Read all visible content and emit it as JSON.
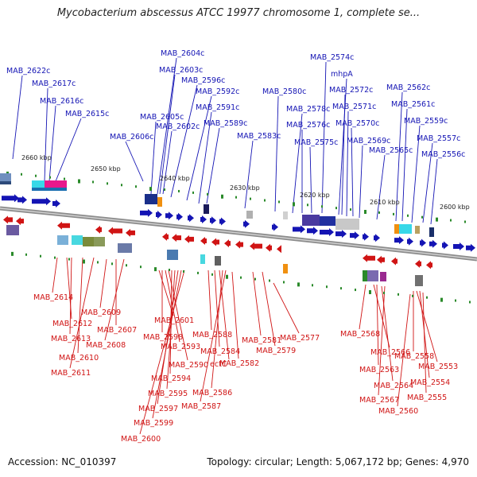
{
  "title": "Mycobacterium abscessus ATCC 19977 chromosome 1, complete se...",
  "footer": {
    "accession": "Accession: NC_010397",
    "summary": "Topology: circular; Length: 5,067,172 bp; Genes: 4,970"
  },
  "scale_labels": [
    "2660 kbp",
    "2650 kbp",
    "2640 kbp",
    "2630 kbp",
    "2620 kbp",
    "2610 kbp",
    "2600 kbp"
  ],
  "top_genes": [
    "MAB_2622c",
    "MAB_2617c",
    "MAB_2616c",
    "MAB_2615c",
    "MAB_2606c",
    "MAB_2605c",
    "MAB_2604c",
    "MAB_2603c",
    "MAB_2602c",
    "MAB_2596c",
    "MAB_2592c",
    "MAB_2591c",
    "MAB_2589c",
    "MAB_2583c",
    "MAB_2580c",
    "MAB_2578c",
    "MAB_2576c",
    "MAB_2575c",
    "MAB_2574c",
    "mhpA",
    "MAB_2572c",
    "MAB_2571c",
    "MAB_2570c",
    "MAB_2569c",
    "MAB_2565c",
    "MAB_2562c",
    "MAB_2561c",
    "MAB_2559c",
    "MAB_2557c",
    "MAB_2556c"
  ],
  "bottom_genes": [
    "MAB_2614",
    "MAB_2612",
    "MAB_2613",
    "MAB_2610",
    "MAB_2611",
    "MAB_2609",
    "MAB_2607",
    "MAB_2608",
    "MAB_2601",
    "MAB_2598",
    "MAB_2593",
    "MAB_2590",
    "MAB_2594",
    "MAB_2595",
    "MAB_2597",
    "MAB_2599",
    "MAB_2600",
    "MAB_2588",
    "MAB_2584",
    "ectC",
    "MAB_2586",
    "MAB_2587",
    "MAB_2582",
    "MAB_2581",
    "MAB_2579",
    "MAB_2577",
    "MAB_2568",
    "MAB_2566",
    "MAB_2563",
    "MAB_2564",
    "MAB_2567",
    "MAB_2558",
    "MAB_2553",
    "MAB_2554",
    "MAB_2555",
    "MAB_2560"
  ],
  "colors": {
    "plus_strand": "#1414b4",
    "minus_strand": "#d01414",
    "backbone": "#8c8c8c",
    "tick": "#2a8a2a"
  }
}
